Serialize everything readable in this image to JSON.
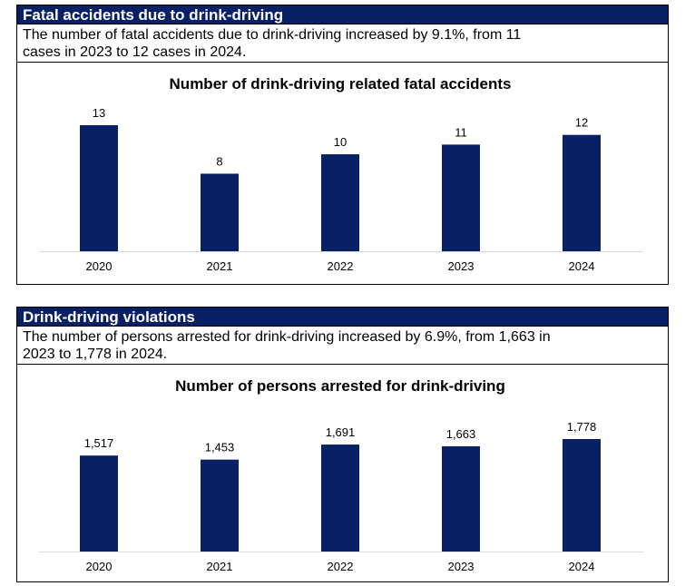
{
  "sections": [
    {
      "header": "Fatal accidents due to drink-driving",
      "description_line1": "The number of fatal accidents due to drink-driving increased by 9.1%, from 11",
      "description_line2": "cases in 2023 to 12 cases in 2024."
    },
    {
      "header": "Drink-driving violations",
      "description_line1": "The number of persons arrested for drink-driving increased by 6.9%, from 1,663 in",
      "description_line2": "2023 to 1,778 in 2024."
    }
  ],
  "chart_data": [
    {
      "type": "bar",
      "title": "Number of drink-driving related fatal accidents",
      "categories": [
        "2020",
        "2021",
        "2022",
        "2023",
        "2024"
      ],
      "values": [
        13,
        8,
        10,
        11,
        12
      ],
      "value_labels": [
        "13",
        "8",
        "10",
        "11",
        "12"
      ],
      "ylim": [
        0,
        13
      ],
      "xlabel": "",
      "ylabel": "",
      "grid": false,
      "bar_color": "#0a2064"
    },
    {
      "type": "bar",
      "title": "Number of persons arrested for drink-driving",
      "categories": [
        "2020",
        "2021",
        "2022",
        "2023",
        "2024"
      ],
      "values": [
        1517,
        1453,
        1691,
        1663,
        1778
      ],
      "value_labels": [
        "1,517",
        "1,453",
        "1,691",
        "1,663",
        "1,778"
      ],
      "ylim": [
        0,
        1778
      ],
      "xlabel": "",
      "ylabel": "",
      "grid": false,
      "bar_color": "#0a2064"
    }
  ],
  "colors": {
    "header_bg": "#0a2064",
    "header_text": "#ffffff",
    "axis": "#d9d9d9"
  }
}
